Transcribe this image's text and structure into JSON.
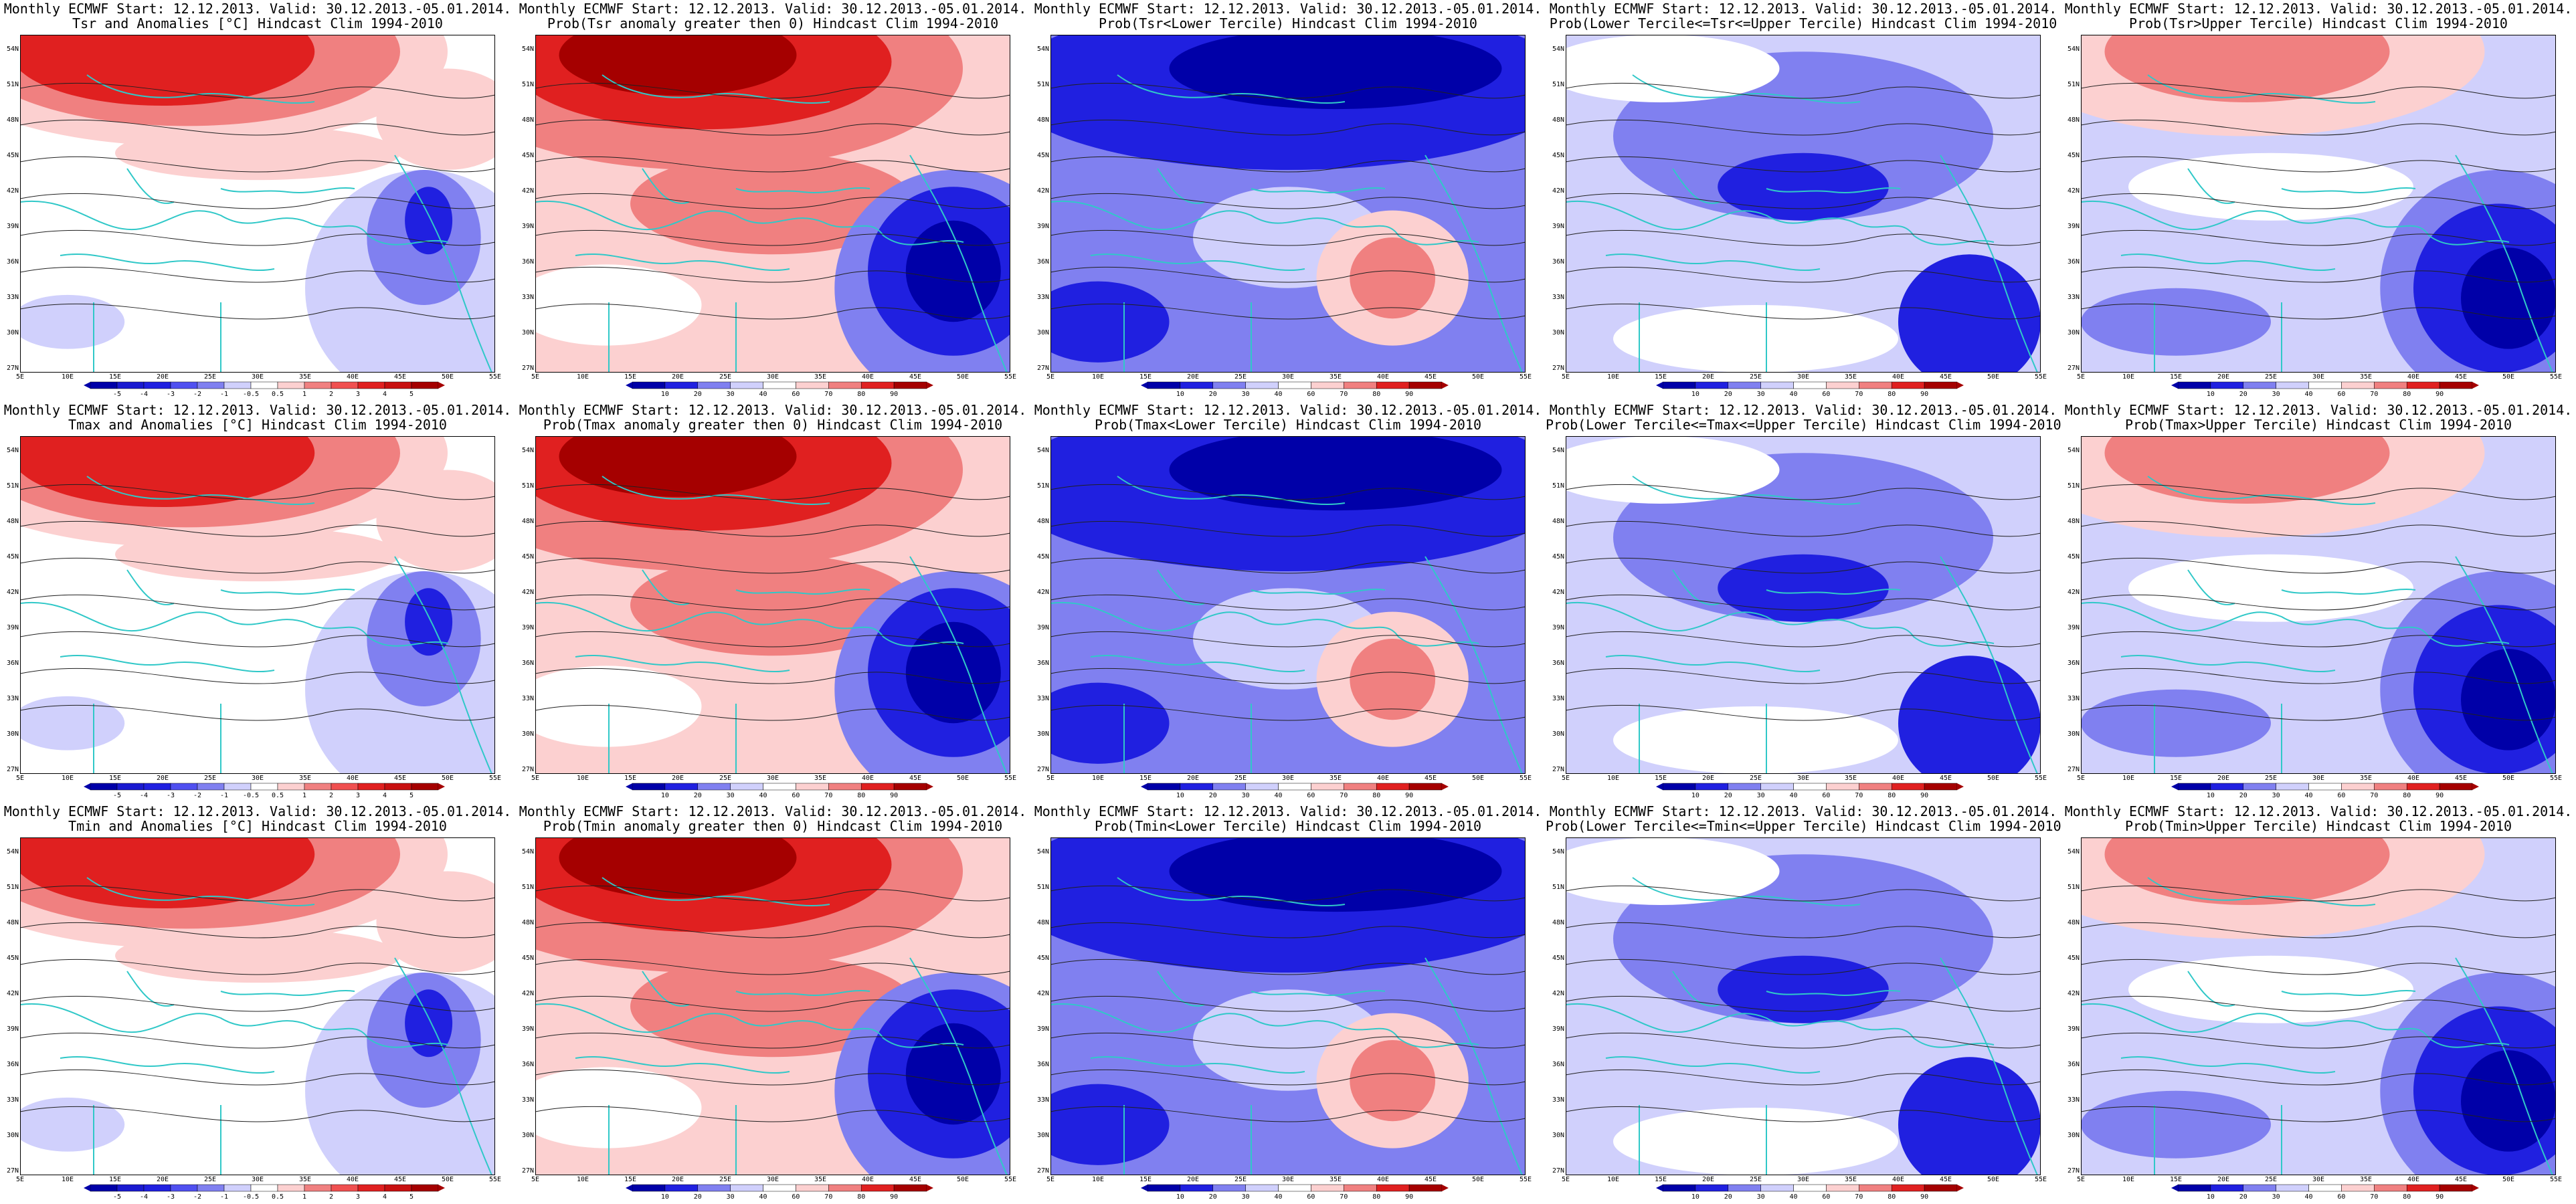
{
  "header_prefix": "Monthly ECMWF Start: 12.12.2013. Valid: 30.12.2013.-05.01.2014.",
  "axes": {
    "lat": [
      "54N",
      "51N",
      "48N",
      "45N",
      "42N",
      "39N",
      "36N",
      "33N",
      "30N",
      "27N"
    ],
    "lon": [
      "5E",
      "10E",
      "15E",
      "20E",
      "25E",
      "30E",
      "35E",
      "40E",
      "45E",
      "50E",
      "55E"
    ]
  },
  "legends": {
    "anomaly": [
      "-5",
      "-4",
      "-3",
      "-2",
      "-1",
      "-0.5",
      "0.5",
      "1",
      "2",
      "3",
      "4",
      "5"
    ],
    "prob": [
      "10",
      "20",
      "30",
      "40",
      "60",
      "70",
      "80",
      "90"
    ]
  },
  "colors": {
    "red_dark": "#a50000",
    "red_mid": "#e02020",
    "red_light": "#f08080",
    "red_pale": "#fcd0d0",
    "blue_dark": "#0000a8",
    "blue_mid": "#2020e0",
    "blue_light": "#8080f0",
    "blue_pale": "#d0d0fc",
    "coast": "#30c8c8",
    "contour": "#202020"
  },
  "panels": [
    {
      "title2": "Tsr and Anomalies [°C] Hindcast Clim 1994-2010",
      "legend": "anomaly"
    },
    {
      "title2": "Prob(Tsr anomaly greater then 0) Hindcast Clim 1994-2010",
      "legend": "prob"
    },
    {
      "title2": "Prob(Tsr<Lower Tercile) Hindcast Clim 1994-2010",
      "legend": "prob"
    },
    {
      "title2": "Prob(Lower Tercile<=Tsr<=Upper Tercile) Hindcast Clim 1994-2010",
      "legend": "prob"
    },
    {
      "title2": "Prob(Tsr>Upper Tercile) Hindcast Clim 1994-2010",
      "legend": "prob"
    },
    {
      "title2": "Tmax and Anomalies [°C] Hindcast Clim 1994-2010",
      "legend": "anomaly"
    },
    {
      "title2": "Prob(Tmax anomaly greater then 0) Hindcast Clim 1994-2010",
      "legend": "prob"
    },
    {
      "title2": "Prob(Tmax<Lower Tercile) Hindcast Clim 1994-2010",
      "legend": "prob"
    },
    {
      "title2": "Prob(Lower Tercile<=Tmax<=Upper Tercile) Hindcast Clim 1994-2010",
      "legend": "prob"
    },
    {
      "title2": "Prob(Tmax>Upper Tercile) Hindcast Clim 1994-2010",
      "legend": "prob"
    },
    {
      "title2": "Tmin and Anomalies [°C] Hindcast Clim 1994-2010",
      "legend": "anomaly"
    },
    {
      "title2": "Prob(Tmin anomaly greater then 0) Hindcast Clim 1994-2010",
      "legend": "prob"
    },
    {
      "title2": "Prob(Tmin<Lower Tercile) Hindcast Clim 1994-2010",
      "legend": "prob"
    },
    {
      "title2": "Prob(Lower Tercile<=Tmin<=Upper Tercile) Hindcast Clim 1994-2010",
      "legend": "prob"
    },
    {
      "title2": "Prob(Tmin>Upper Tercile) Hindcast Clim 1994-2010",
      "legend": "prob"
    }
  ]
}
